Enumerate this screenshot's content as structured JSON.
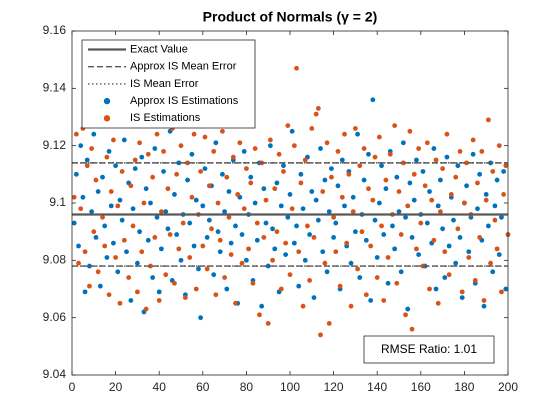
{
  "chart_data": {
    "type": "scatter",
    "title": "Product of Normals (γ = 2)",
    "annotation": "RMSE Ratio: 1.01",
    "xlim": [
      0,
      200
    ],
    "xticks": [
      0,
      20,
      40,
      60,
      80,
      100,
      120,
      140,
      160,
      180,
      200
    ],
    "ylim": [
      9.04,
      9.16
    ],
    "yticks": [
      9.04,
      9.06,
      9.08,
      9.1,
      9.12,
      9.14,
      9.16
    ],
    "legend": "upper left",
    "lines": [
      {
        "name": "Exact Value",
        "style": "solid",
        "color": "#595959",
        "values": [
          9.096
        ]
      },
      {
        "name": "Approx IS Mean Error",
        "style": "dashed",
        "color": "#595959",
        "values": [
          9.078,
          9.114
        ]
      },
      {
        "name": "IS Mean Error",
        "style": "dotted",
        "color": "#595959",
        "values": [
          9.078,
          9.114
        ]
      }
    ],
    "x": [
      1,
      2,
      3,
      4,
      5,
      6,
      7,
      8,
      9,
      10,
      11,
      12,
      13,
      14,
      15,
      16,
      17,
      18,
      19,
      20,
      21,
      22,
      23,
      24,
      25,
      26,
      27,
      28,
      29,
      30,
      31,
      32,
      33,
      34,
      35,
      36,
      37,
      38,
      39,
      40,
      41,
      42,
      43,
      44,
      45,
      46,
      47,
      48,
      49,
      50,
      51,
      52,
      53,
      54,
      55,
      56,
      57,
      58,
      59,
      60,
      61,
      62,
      63,
      64,
      65,
      66,
      67,
      68,
      69,
      70,
      71,
      72,
      73,
      74,
      75,
      76,
      77,
      78,
      79,
      80,
      81,
      82,
      83,
      84,
      85,
      86,
      87,
      88,
      89,
      90,
      91,
      92,
      93,
      94,
      95,
      96,
      97,
      98,
      99,
      100,
      101,
      102,
      103,
      104,
      105,
      106,
      107,
      108,
      109,
      110,
      111,
      112,
      113,
      114,
      115,
      116,
      117,
      118,
      119,
      120,
      121,
      122,
      123,
      124,
      125,
      126,
      127,
      128,
      129,
      130,
      131,
      132,
      133,
      134,
      135,
      136,
      137,
      138,
      139,
      140,
      141,
      142,
      143,
      144,
      145,
      146,
      147,
      148,
      149,
      150,
      151,
      152,
      153,
      154,
      155,
      156,
      157,
      158,
      159,
      160,
      161,
      162,
      163,
      164,
      165,
      166,
      167,
      168,
      169,
      170,
      171,
      172,
      173,
      174,
      175,
      176,
      177,
      178,
      179,
      180,
      181,
      182,
      183,
      184,
      185,
      186,
      187,
      188,
      189,
      190,
      191,
      192,
      193,
      194,
      195,
      196,
      197,
      198,
      199,
      200
    ],
    "series": [
      {
        "name": "Approx IS Estimations",
        "color": "#0072BD",
        "values": [
          9.093,
          9.11,
          9.085,
          9.12,
          9.102,
          9.069,
          9.115,
          9.078,
          9.097,
          9.124,
          9.088,
          9.104,
          9.071,
          9.109,
          9.092,
          9.081,
          9.118,
          9.099,
          9.086,
          9.113,
          9.076,
          9.101,
          9.094,
          9.122,
          9.083,
          9.107,
          9.066,
          9.098,
          9.112,
          9.079,
          9.09,
          9.116,
          9.062,
          9.105,
          9.087,
          9.1,
          9.074,
          9.119,
          9.095,
          9.069,
          9.084,
          9.111,
          9.097,
          9.091,
          9.125,
          9.073,
          9.103,
          9.089,
          9.114,
          9.08,
          9.096,
          9.068,
          9.108,
          9.093,
          9.117,
          9.085,
          9.101,
          9.077,
          9.06,
          9.099,
          9.112,
          9.088,
          9.094,
          9.106,
          9.075,
          9.121,
          9.09,
          9.083,
          9.11,
          9.097,
          9.07,
          9.104,
          9.086,
          9.115,
          9.092,
          9.065,
          9.102,
          9.089,
          9.118,
          9.08,
          9.096,
          9.109,
          9.073,
          9.1,
          9.087,
          9.114,
          9.064,
          9.105,
          9.093,
          9.078,
          9.12,
          9.091,
          9.084,
          9.107,
          9.069,
          9.099,
          9.113,
          9.082,
          9.095,
          9.103,
          9.125,
          9.086,
          9.092,
          9.071,
          9.11,
          9.098,
          9.08,
          9.116,
          9.089,
          9.104,
          9.067,
          9.101,
          9.094,
          9.119,
          9.083,
          9.108,
          9.076,
          9.097,
          9.112,
          9.088,
          9.093,
          9.106,
          9.07,
          9.115,
          9.099,
          9.085,
          9.111,
          9.079,
          9.102,
          9.09,
          9.124,
          9.074,
          9.096,
          9.108,
          9.087,
          9.117,
          9.066,
          9.136,
          9.094,
          9.081,
          9.1,
          9.113,
          9.089,
          9.105,
          9.072,
          9.118,
          9.092,
          9.084,
          9.109,
          9.097,
          9.076,
          9.121,
          9.095,
          9.063,
          9.107,
          9.088,
          9.101,
          9.115,
          9.082,
          9.096,
          9.111,
          9.078,
          9.093,
          9.104,
          9.086,
          9.119,
          9.07,
          9.099,
          9.108,
          9.091,
          9.074,
          9.116,
          9.085,
          9.102,
          9.094,
          9.079,
          9.113,
          9.088,
          9.067,
          9.1,
          9.106,
          9.083,
          9.095,
          9.117,
          9.072,
          9.098,
          9.11,
          9.087,
          9.064,
          9.103,
          9.092,
          9.114,
          9.076,
          9.099,
          9.108,
          9.082,
          9.095,
          9.111,
          9.07,
          9.089
        ]
      },
      {
        "name": "IS Estimations",
        "color": "#D95319",
        "values": [
          9.102,
          9.124,
          9.079,
          9.098,
          9.126,
          9.083,
          9.113,
          9.071,
          9.119,
          9.09,
          9.108,
          9.076,
          9.127,
          9.095,
          9.085,
          9.116,
          9.068,
          9.104,
          9.122,
          9.081,
          9.099,
          9.065,
          9.111,
          9.087,
          9.128,
          9.074,
          9.106,
          9.092,
          9.115,
          9.069,
          9.121,
          9.083,
          9.1,
          9.063,
          9.117,
          9.078,
          9.109,
          9.088,
          9.124,
          9.066,
          9.097,
          9.118,
          9.075,
          9.105,
          9.089,
          9.126,
          9.072,
          9.11,
          9.084,
          9.12,
          9.093,
          9.067,
          9.114,
          9.081,
          9.102,
          9.124,
          9.07,
          9.096,
          9.111,
          9.085,
          9.123,
          9.077,
          9.106,
          9.091,
          9.118,
          9.068,
          9.1,
          9.087,
          9.125,
          9.074,
          9.109,
          9.095,
          9.082,
          9.116,
          9.065,
          9.103,
          9.121,
          9.079,
          9.098,
          9.112,
          9.084,
          9.107,
          9.072,
          9.119,
          9.093,
          9.061,
          9.114,
          9.088,
          9.101,
          9.058,
          9.122,
          9.08,
          9.105,
          9.09,
          9.117,
          9.07,
          9.111,
          9.086,
          9.127,
          9.075,
          9.098,
          9.12,
          9.147,
          9.083,
          9.107,
          9.064,
          9.115,
          9.092,
          9.073,
          9.126,
          9.088,
          9.131,
          9.133,
          9.054,
          9.104,
          9.079,
          9.121,
          9.058,
          9.109,
          9.095,
          9.083,
          9.118,
          9.071,
          9.102,
          9.124,
          9.086,
          9.11,
          9.064,
          9.097,
          9.126,
          9.077,
          9.113,
          9.09,
          9.119,
          9.068,
          9.105,
          9.085,
          9.101,
          9.116,
          9.074,
          9.123,
          9.092,
          9.066,
          9.108,
          9.081,
          9.117,
          9.096,
          9.127,
          9.072,
          9.104,
          9.089,
          9.114,
          9.061,
          9.099,
          9.125,
          9.056,
          9.11,
          9.084,
          9.119,
          9.093,
          9.078,
          9.106,
          9.121,
          9.07,
          9.101,
          9.087,
          9.115,
          9.065,
          9.097,
          9.112,
          9.083,
          9.124,
          9.075,
          9.103,
          9.048,
          9.109,
          9.091,
          9.118,
          9.069,
          9.1,
          9.114,
          9.081,
          9.096,
          9.122,
          9.073,
          9.107,
          9.088,
          9.118,
          9.066,
          9.101,
          9.129,
          9.079,
          9.111,
          9.094,
          9.084,
          9.12,
          9.069,
          9.103,
          9.113,
          9.089
        ]
      }
    ]
  }
}
